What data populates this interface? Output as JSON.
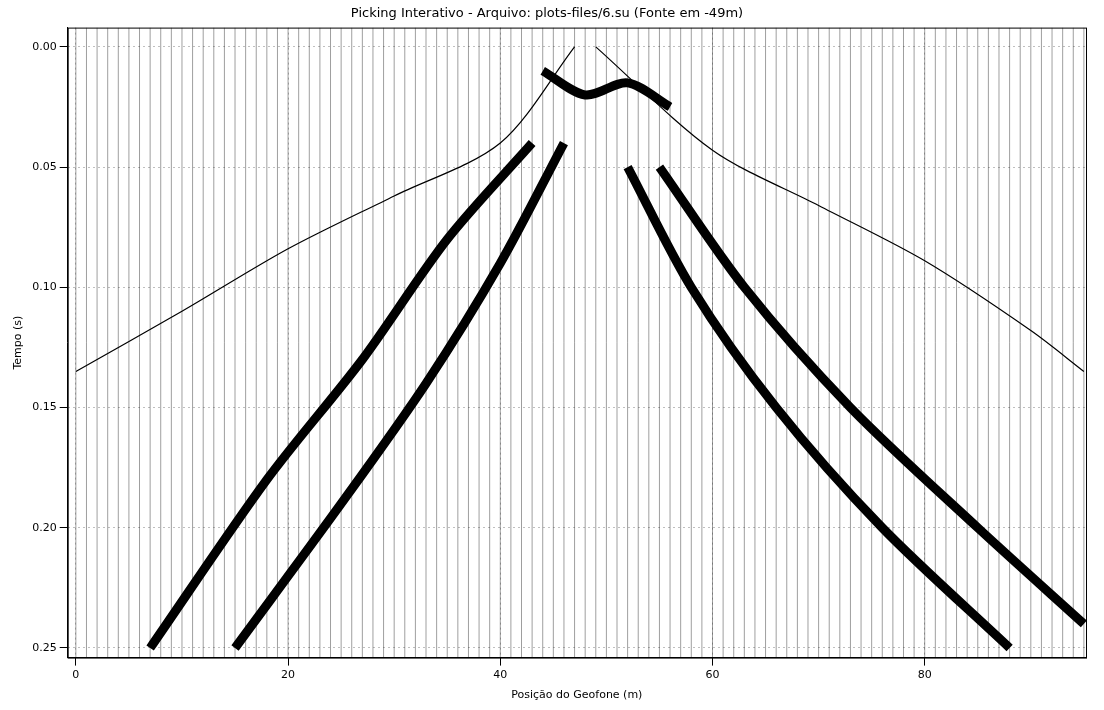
{
  "chart_data": {
    "type": "line",
    "title": "Picking Interativo - Arquivo: plots-files/6.su (Fonte em -49m)",
    "x_label": "Posição do Geofone (m)",
    "y_label": "Tempo (s)",
    "xlim": [
      -0.77,
      95.2
    ],
    "ylim": [
      0.254,
      -0.008
    ],
    "xticks": [
      0,
      20,
      40,
      60,
      80
    ],
    "yticks": [
      {
        "value": 0,
        "label": "0.00"
      },
      0.05,
      {
        "value": 0.1,
        "label": "0.10"
      },
      0.15,
      {
        "value": 0.2,
        "label": "0.20"
      },
      0.25
    ],
    "grid": true,
    "trace_positions": [
      0,
      1,
      2,
      3,
      4,
      5,
      6,
      7,
      8,
      9,
      10,
      11,
      12,
      13,
      14,
      15,
      16,
      17,
      18,
      19,
      20,
      21,
      22,
      23,
      24,
      25,
      26,
      27,
      28,
      29,
      30,
      31,
      32,
      33,
      34,
      35,
      36,
      37,
      38,
      39,
      40,
      41,
      42,
      43,
      44,
      45,
      46,
      47,
      48,
      49,
      50,
      51,
      52,
      53,
      54,
      55,
      56,
      57,
      58,
      59,
      60,
      61,
      62,
      63,
      64,
      65,
      66,
      67,
      68,
      69,
      70,
      71,
      72,
      73,
      74,
      75,
      76,
      77,
      78,
      79,
      80,
      81,
      82,
      83,
      84,
      85,
      86,
      87,
      88,
      89,
      90,
      91,
      92,
      93,
      94,
      95
    ],
    "series": [
      {
        "color": "#000000",
        "line_style": "solid",
        "x": [
          47,
          40,
          30,
          20,
          10,
          0
        ],
        "values": [
          0.0,
          0.04,
          0.062,
          0.084,
          0.11,
          0.135
        ]
      },
      {
        "color": "#000000",
        "line_style": "solid",
        "x": [
          49,
          60,
          70,
          80,
          90,
          95
        ],
        "values": [
          0.0,
          0.043,
          0.066,
          0.089,
          0.118,
          0.135
        ]
      },
      {
        "color": "#000000",
        "line_style": "band",
        "x": [
          43,
          35,
          27,
          18,
          7
        ],
        "values": [
          0.04,
          0.08,
          0.13,
          0.18,
          0.25
        ]
      },
      {
        "color": "#000000",
        "line_style": "band",
        "x": [
          46,
          40,
          33,
          25,
          15
        ],
        "values": [
          0.04,
          0.09,
          0.14,
          0.19,
          0.25
        ]
      },
      {
        "color": "#000000",
        "line_style": "band",
        "x": [
          52,
          58,
          66,
          76,
          88
        ],
        "values": [
          0.05,
          0.1,
          0.15,
          0.2,
          0.25
        ]
      },
      {
        "color": "#000000",
        "line_style": "band",
        "x": [
          55,
          63,
          73,
          85,
          95
        ],
        "values": [
          0.05,
          0.1,
          0.15,
          0.2,
          0.24
        ]
      },
      {
        "color": "#000000",
        "line_style": "band",
        "x": [
          44,
          48,
          52,
          56
        ],
        "values": [
          0.01,
          0.02,
          0.015,
          0.025
        ]
      }
    ]
  }
}
